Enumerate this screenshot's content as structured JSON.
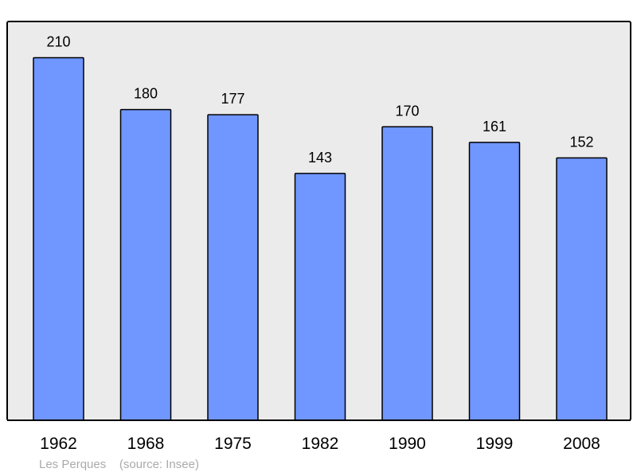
{
  "chart_data": {
    "type": "bar",
    "categories": [
      "1962",
      "1968",
      "1975",
      "1982",
      "1990",
      "1999",
      "2008"
    ],
    "values": [
      210,
      180,
      177,
      143,
      170,
      161,
      152
    ],
    "title": "",
    "xlabel": "",
    "ylabel": "",
    "ylim": [
      0,
      231
    ],
    "grid": false,
    "data_labels": true,
    "colors": {
      "bar": "#7096ff",
      "background": "#ebebeb",
      "border": "#000000"
    }
  },
  "footer": {
    "place": "Les Perques",
    "source": "(source: Insee)"
  }
}
